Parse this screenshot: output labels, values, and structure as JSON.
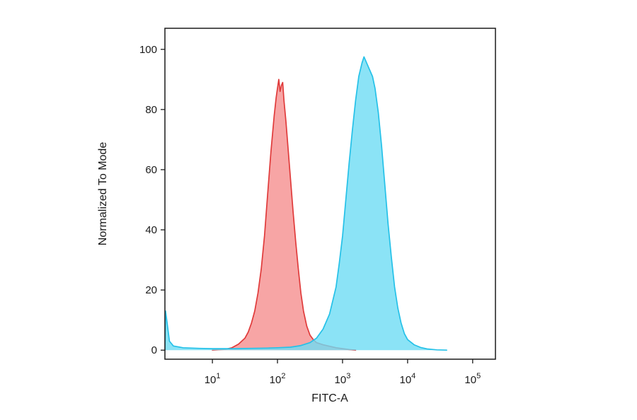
{
  "chart_data": {
    "type": "area",
    "title": "",
    "xlabel": "FITC-A",
    "ylabel": "Normalized To Mode",
    "x_scale": "log10",
    "xlim_log10": [
      0.27,
      5.35
    ],
    "ylim": [
      -3,
      107
    ],
    "x_ticks_exp": [
      1,
      2,
      3,
      4,
      5
    ],
    "x_tick_labels": [
      "10^1",
      "10^2",
      "10^3",
      "10^4",
      "10^5"
    ],
    "y_ticks": [
      0,
      20,
      40,
      60,
      80,
      100
    ],
    "grid": false,
    "legend": "none",
    "series": [
      {
        "name": "red",
        "stroke": "#e03b3b",
        "fill": "#f26d6d",
        "fill_opacity": 0.62,
        "peak": {
          "x_approx": 105,
          "y_approx": 90
        },
        "points_log10x_y": [
          [
            1.0,
            0
          ],
          [
            1.2,
            0.3
          ],
          [
            1.3,
            0.8
          ],
          [
            1.4,
            2
          ],
          [
            1.5,
            4
          ],
          [
            1.55,
            6
          ],
          [
            1.6,
            9
          ],
          [
            1.65,
            13
          ],
          [
            1.7,
            19
          ],
          [
            1.75,
            27
          ],
          [
            1.8,
            38
          ],
          [
            1.85,
            52
          ],
          [
            1.9,
            66
          ],
          [
            1.95,
            78
          ],
          [
            1.98,
            84
          ],
          [
            2.0,
            87
          ],
          [
            2.02,
            90
          ],
          [
            2.04,
            86
          ],
          [
            2.06,
            88
          ],
          [
            2.08,
            89
          ],
          [
            2.1,
            83
          ],
          [
            2.13,
            76
          ],
          [
            2.16,
            68
          ],
          [
            2.2,
            57
          ],
          [
            2.24,
            46
          ],
          [
            2.28,
            36
          ],
          [
            2.32,
            27
          ],
          [
            2.36,
            19
          ],
          [
            2.4,
            13
          ],
          [
            2.45,
            8
          ],
          [
            2.5,
            5
          ],
          [
            2.55,
            3.5
          ],
          [
            2.6,
            2.5
          ],
          [
            2.7,
            1.8
          ],
          [
            2.8,
            1.3
          ],
          [
            2.9,
            0.8
          ],
          [
            3.0,
            0.5
          ],
          [
            3.1,
            0.2
          ],
          [
            3.2,
            0
          ]
        ]
      },
      {
        "name": "cyan",
        "stroke": "#25c1e8",
        "fill": "#6edcf4",
        "fill_opacity": 0.8,
        "peak": {
          "x_approx": 2100,
          "y_approx": 97.5
        },
        "points_log10x_y": [
          [
            0.27,
            0
          ],
          [
            0.28,
            13
          ],
          [
            0.31,
            8
          ],
          [
            0.34,
            3
          ],
          [
            0.4,
            1.4
          ],
          [
            0.55,
            0.8
          ],
          [
            0.8,
            0.6
          ],
          [
            1.0,
            0.5
          ],
          [
            1.3,
            0.5
          ],
          [
            1.6,
            0.6
          ],
          [
            1.85,
            0.7
          ],
          [
            2.0,
            0.8
          ],
          [
            2.2,
            1.0
          ],
          [
            2.35,
            1.5
          ],
          [
            2.5,
            2.5
          ],
          [
            2.6,
            4
          ],
          [
            2.7,
            7
          ],
          [
            2.8,
            12
          ],
          [
            2.9,
            21
          ],
          [
            2.95,
            29
          ],
          [
            3.0,
            38
          ],
          [
            3.05,
            50
          ],
          [
            3.1,
            62
          ],
          [
            3.15,
            73
          ],
          [
            3.2,
            83
          ],
          [
            3.25,
            91
          ],
          [
            3.3,
            95.5
          ],
          [
            3.33,
            97.5
          ],
          [
            3.38,
            95
          ],
          [
            3.42,
            93
          ],
          [
            3.46,
            91
          ],
          [
            3.5,
            87
          ],
          [
            3.55,
            79
          ],
          [
            3.6,
            68
          ],
          [
            3.65,
            55
          ],
          [
            3.7,
            42
          ],
          [
            3.75,
            31
          ],
          [
            3.8,
            21
          ],
          [
            3.85,
            14
          ],
          [
            3.9,
            9
          ],
          [
            3.95,
            5.5
          ],
          [
            4.0,
            3.5
          ],
          [
            4.1,
            1.8
          ],
          [
            4.2,
            0.9
          ],
          [
            4.3,
            0.4
          ],
          [
            4.45,
            0.1
          ],
          [
            4.6,
            0
          ]
        ]
      }
    ]
  }
}
